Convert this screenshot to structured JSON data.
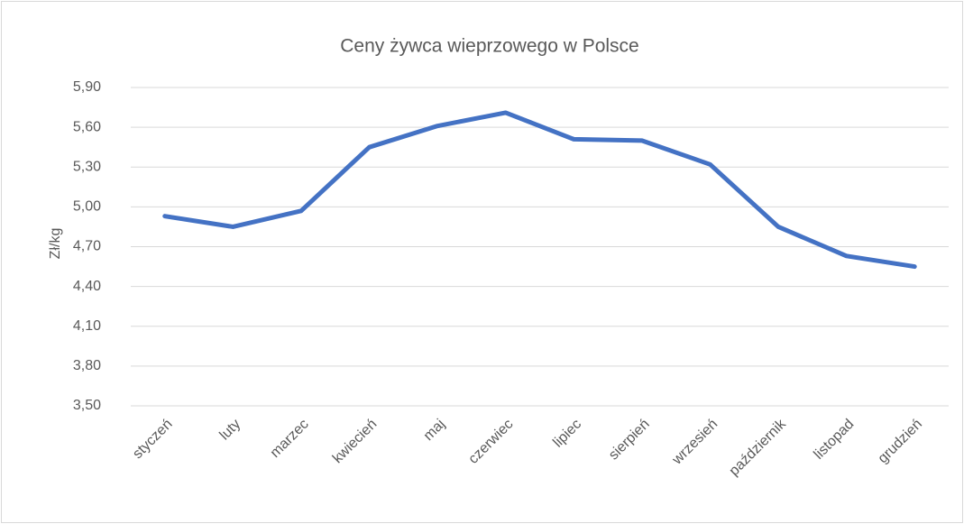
{
  "chart_data": {
    "type": "line",
    "title": "Ceny żywca wieprzowego w Polsce",
    "y_label": "Zł/kg",
    "categories": [
      "styczeń",
      "luty",
      "marzec",
      "kwiecień",
      "maj",
      "czerwiec",
      "lipiec",
      "sierpień",
      "wrzesień",
      "październik",
      "listopad",
      "grudzień"
    ],
    "series": [
      {
        "name": "Ceny",
        "color": "#4472c4",
        "values": [
          4.93,
          4.85,
          4.97,
          5.45,
          5.61,
          5.71,
          5.51,
          5.5,
          5.32,
          4.85,
          4.63,
          4.55
        ]
      }
    ],
    "ylim": [
      3.5,
      5.9
    ],
    "yticks": [
      {
        "value": 3.5,
        "label": "3,50"
      },
      {
        "value": 3.8,
        "label": "3,80"
      },
      {
        "value": 4.1,
        "label": "4,10"
      },
      {
        "value": 4.4,
        "label": "4,40"
      },
      {
        "value": 4.7,
        "label": "4,70"
      },
      {
        "value": 5.0,
        "label": "5,00"
      },
      {
        "value": 5.3,
        "label": "5,30"
      },
      {
        "value": 5.6,
        "label": "5,60"
      },
      {
        "value": 5.9,
        "label": "5,90"
      }
    ],
    "grid": true
  }
}
